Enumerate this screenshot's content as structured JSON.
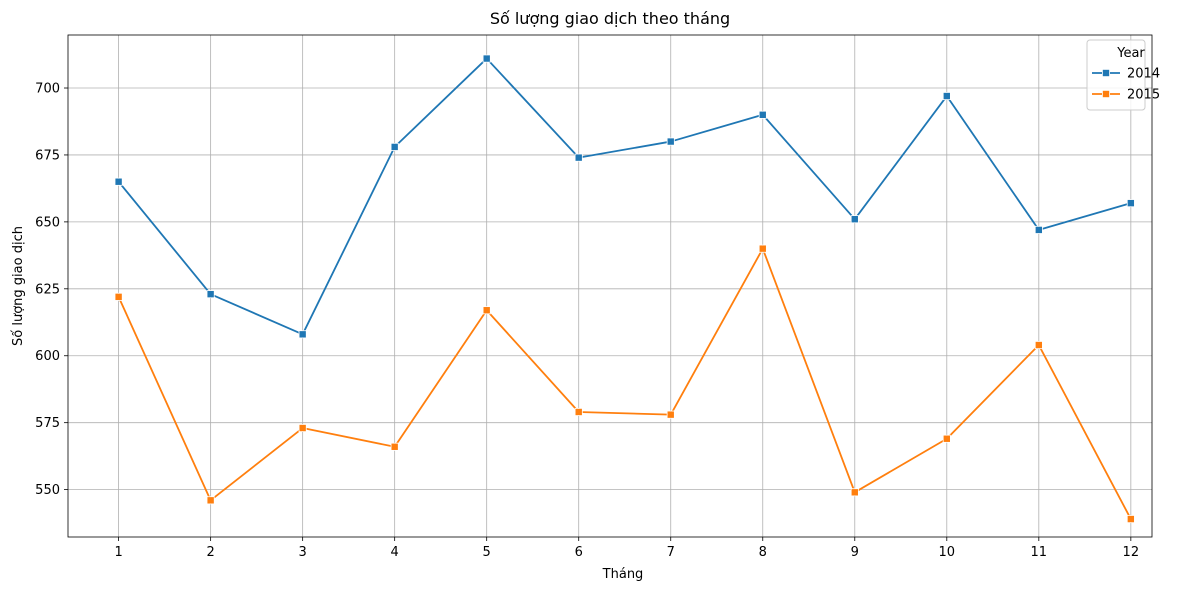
{
  "chart_data": {
    "type": "line",
    "title": "Số lượng giao dịch theo tháng",
    "xlabel": "Tháng",
    "ylabel": "Số lượng giao dịch",
    "x": [
      1,
      2,
      3,
      4,
      5,
      6,
      7,
      8,
      9,
      10,
      11,
      12
    ],
    "xticks": [
      "1",
      "2",
      "3",
      "4",
      "5",
      "6",
      "7",
      "8",
      "9",
      "10",
      "11",
      "12"
    ],
    "yticks": [
      "550",
      "575",
      "600",
      "625",
      "650",
      "675",
      "700"
    ],
    "ytick_values": [
      550,
      575,
      600,
      625,
      650,
      675,
      700
    ],
    "xlim": [
      0.45,
      12.23
    ],
    "ylim": [
      532.3,
      719.8
    ],
    "grid": true,
    "marker": "square",
    "legend": {
      "title": "Year",
      "placement": "top-right"
    },
    "series": [
      {
        "name": "2014",
        "color": "#1f77b4",
        "values": [
          665,
          623,
          608,
          678,
          711,
          674,
          680,
          690,
          651,
          697,
          647,
          657
        ]
      },
      {
        "name": "2015",
        "color": "#ff7f0e",
        "values": [
          622,
          546,
          573,
          566,
          617,
          579,
          578,
          640,
          549,
          569,
          604,
          539
        ]
      }
    ]
  }
}
